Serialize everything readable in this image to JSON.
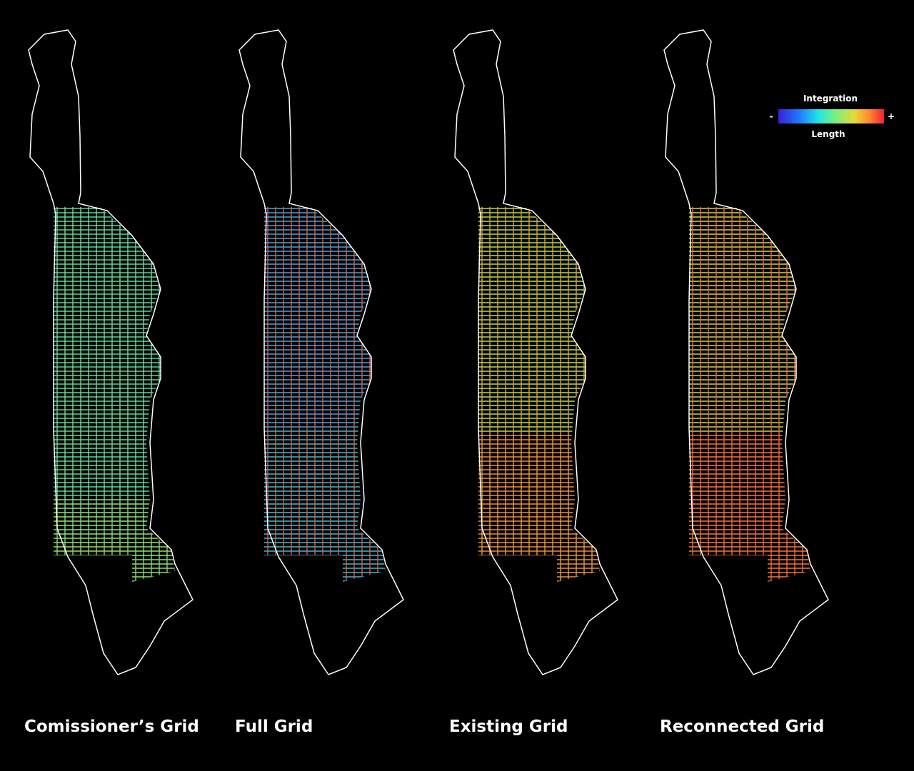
{
  "legend": {
    "title": "Integration",
    "min": "-",
    "max": "+",
    "subtitle": "Length"
  },
  "maps": [
    {
      "label": "Comissioner’s Grid"
    },
    {
      "label": "Full Grid"
    },
    {
      "label": "Existing Grid"
    },
    {
      "label": "Reconnected Grid"
    }
  ]
}
